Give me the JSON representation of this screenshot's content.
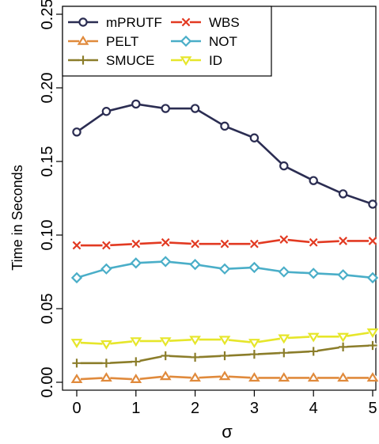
{
  "chart_data": {
    "type": "line",
    "xlabel": "σ",
    "ylabel": "Time in Seconds",
    "xlim": [
      0,
      5
    ],
    "ylim": [
      0,
      0.25
    ],
    "x": [
      0,
      0.5,
      1,
      1.5,
      2,
      2.5,
      3,
      3.5,
      4,
      4.5,
      5
    ],
    "xticks": [
      "0",
      "1",
      "2",
      "3",
      "4",
      "5"
    ],
    "yticks": [
      "0.00",
      "0.05",
      "0.10",
      "0.15",
      "0.20",
      "0.25"
    ],
    "legend_position": "top-left",
    "grid": false,
    "series": [
      {
        "name": "mPRUTF",
        "color": "#2b2d52",
        "marker": "circle",
        "values": [
          0.17,
          0.184,
          0.189,
          0.186,
          0.186,
          0.174,
          0.166,
          0.147,
          0.137,
          0.128,
          0.121
        ]
      },
      {
        "name": "PELT",
        "color": "#e08a3c",
        "marker": "triangle-up",
        "values": [
          0.002,
          0.003,
          0.002,
          0.004,
          0.003,
          0.004,
          0.003,
          0.003,
          0.003,
          0.003,
          0.003
        ]
      },
      {
        "name": "SMUCE",
        "color": "#8b7d2a",
        "marker": "plus",
        "values": [
          0.013,
          0.013,
          0.014,
          0.018,
          0.017,
          0.018,
          0.019,
          0.02,
          0.021,
          0.024,
          0.025
        ]
      },
      {
        "name": "WBS",
        "color": "#e23a22",
        "marker": "cross",
        "values": [
          0.093,
          0.093,
          0.094,
          0.095,
          0.094,
          0.094,
          0.094,
          0.097,
          0.095,
          0.096,
          0.096
        ]
      },
      {
        "name": "NOT",
        "color": "#4aaec8",
        "marker": "diamond",
        "values": [
          0.071,
          0.077,
          0.081,
          0.082,
          0.08,
          0.077,
          0.078,
          0.075,
          0.074,
          0.073,
          0.071
        ]
      },
      {
        "name": "ID",
        "color": "#e6e62a",
        "marker": "triangle-down",
        "values": [
          0.027,
          0.026,
          0.028,
          0.028,
          0.029,
          0.029,
          0.027,
          0.03,
          0.031,
          0.031,
          0.034
        ]
      }
    ]
  }
}
